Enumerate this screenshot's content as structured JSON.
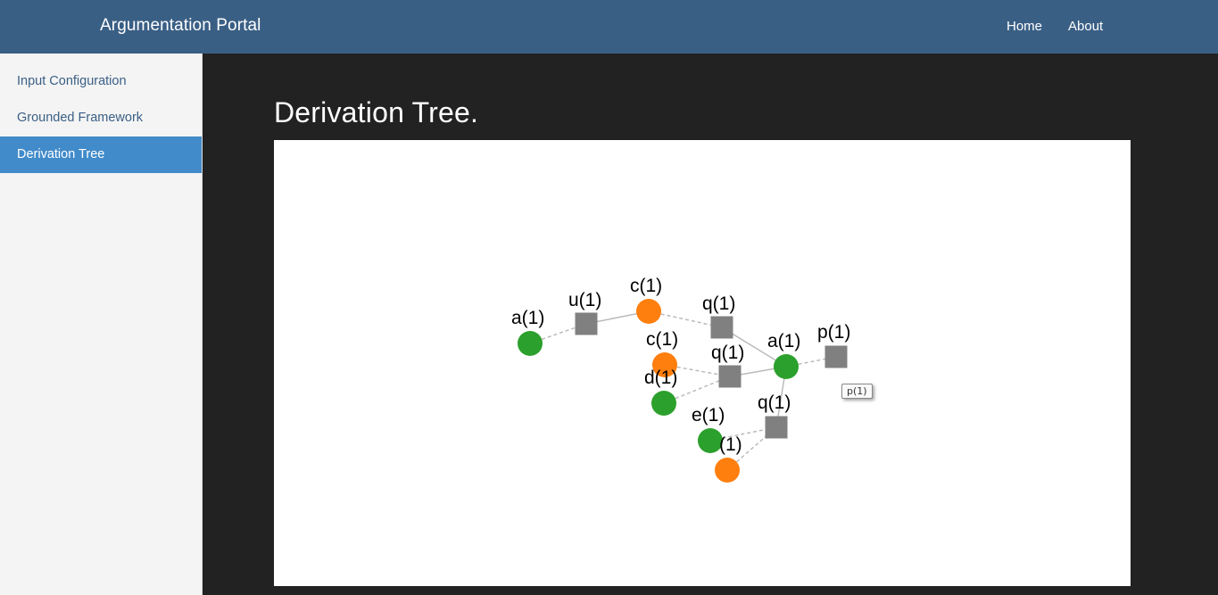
{
  "navbar": {
    "brand": "Argumentation Portal",
    "links": [
      {
        "label": "Home"
      },
      {
        "label": "About"
      }
    ]
  },
  "sidebar": {
    "items": [
      {
        "label": "Input Configuration",
        "active": false
      },
      {
        "label": "Grounded Framework",
        "active": false
      },
      {
        "label": "Derivation Tree",
        "active": true
      }
    ]
  },
  "main": {
    "title": "Derivation Tree."
  },
  "graph": {
    "colors": {
      "green": "#2ca02c",
      "orange": "#ff7f0e",
      "square": "#808080",
      "solid_edge": "#bbbbbb",
      "dashed_edge": "#bbbbbb"
    },
    "nodes": [
      {
        "id": "a1",
        "label": "a(1)",
        "shape": "circle",
        "color": "green"
      },
      {
        "id": "u1",
        "label": "u(1)",
        "shape": "square",
        "color": "square"
      },
      {
        "id": "c1",
        "label": "c(1)",
        "shape": "circle",
        "color": "orange"
      },
      {
        "id": "q1a",
        "label": "q(1)",
        "shape": "square",
        "color": "square"
      },
      {
        "id": "c2",
        "label": "c(1)",
        "shape": "circle",
        "color": "orange"
      },
      {
        "id": "q1b",
        "label": "q(1)",
        "shape": "square",
        "color": "square"
      },
      {
        "id": "d1",
        "label": "d(1)",
        "shape": "circle",
        "color": "green"
      },
      {
        "id": "a2",
        "label": "a(1)",
        "shape": "circle",
        "color": "green"
      },
      {
        "id": "p1",
        "label": "p(1)",
        "shape": "square",
        "color": "square"
      },
      {
        "id": "q1c",
        "label": "q(1)",
        "shape": "square",
        "color": "square"
      },
      {
        "id": "e1",
        "label": "e(1)",
        "shape": "circle",
        "color": "green"
      },
      {
        "id": "x1",
        "label": "(1)",
        "shape": "circle",
        "color": "orange"
      }
    ],
    "edges": [
      {
        "from": "a1",
        "to": "u1",
        "style": "dashed"
      },
      {
        "from": "u1",
        "to": "c1",
        "style": "solid"
      },
      {
        "from": "c1",
        "to": "q1a",
        "style": "dashed"
      },
      {
        "from": "q1a",
        "to": "a2",
        "style": "solid"
      },
      {
        "from": "c2",
        "to": "q1b",
        "style": "dashed"
      },
      {
        "from": "d1",
        "to": "q1b",
        "style": "dashed"
      },
      {
        "from": "q1b",
        "to": "a2",
        "style": "solid"
      },
      {
        "from": "a2",
        "to": "p1",
        "style": "dashed"
      },
      {
        "from": "a2",
        "to": "q1c",
        "style": "solid"
      },
      {
        "from": "e1",
        "to": "q1c",
        "style": "dashed"
      },
      {
        "from": "x1",
        "to": "q1c",
        "style": "dashed"
      }
    ],
    "tooltip": "p(1)"
  }
}
